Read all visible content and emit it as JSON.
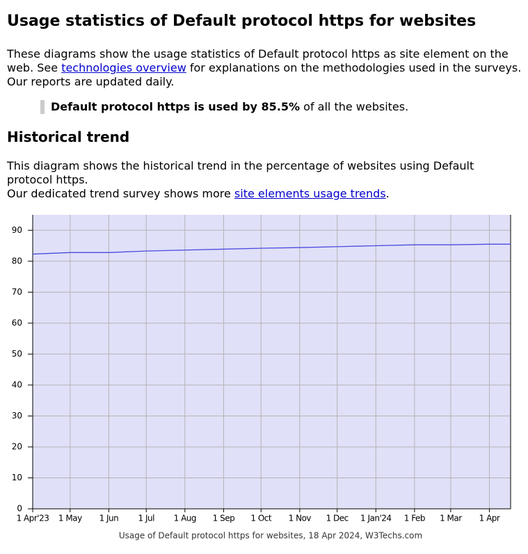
{
  "header": {
    "title": "Usage statistics of Default protocol https for websites"
  },
  "intro": {
    "before": "These diagrams show the usage statistics of Default protocol https as site element on the web. See ",
    "link": "technologies overview",
    "after": " for explanations on the methodologies used in the surveys. Our reports are updated daily."
  },
  "highlight": {
    "bold": "Default protocol https is used by 85.5%",
    "rest": " of all the websites."
  },
  "section": {
    "title": "Historical trend",
    "line1": "This diagram shows the historical trend in the percentage of websites using Default protocol https.",
    "line2_before": "Our dedicated trend survey shows more ",
    "line2_link": "site elements usage trends",
    "line2_after": "."
  },
  "chart_data": {
    "type": "line",
    "caption": "Usage of Default protocol https for websites, 18 Apr 2024, W3Techs.com",
    "x": [
      "2023-04-01",
      "2023-05-01",
      "2023-06-01",
      "2023-07-01",
      "2023-08-01",
      "2023-09-01",
      "2023-10-01",
      "2023-11-01",
      "2023-12-01",
      "2024-01-01",
      "2024-02-01",
      "2024-03-01",
      "2024-04-01",
      "2024-04-18"
    ],
    "values": [
      82.3,
      82.8,
      82.8,
      83.3,
      83.6,
      83.9,
      84.2,
      84.4,
      84.7,
      85.0,
      85.3,
      85.3,
      85.5,
      85.5
    ],
    "color": "#4a4ae0",
    "xlim": [
      "2023-04-01",
      "2024-04-18"
    ],
    "xticks": [
      {
        "value": "2023-04-01",
        "label": "1 Apr'23"
      },
      {
        "value": "2023-05-01",
        "label": "1 May"
      },
      {
        "value": "2023-06-01",
        "label": "1 Jun"
      },
      {
        "value": "2023-07-01",
        "label": "1 Jul"
      },
      {
        "value": "2023-08-01",
        "label": "1 Aug"
      },
      {
        "value": "2023-09-01",
        "label": "1 Sep"
      },
      {
        "value": "2023-10-01",
        "label": "1 Oct"
      },
      {
        "value": "2023-11-01",
        "label": "1 Nov"
      },
      {
        "value": "2023-12-01",
        "label": "1 Dec"
      },
      {
        "value": "2024-01-01",
        "label": "1 Jan'24"
      },
      {
        "value": "2024-02-01",
        "label": "1 Feb"
      },
      {
        "value": "2024-03-01",
        "label": "1 Mar"
      },
      {
        "value": "2024-04-01",
        "label": "1 Apr"
      }
    ],
    "ylim": [
      0,
      95
    ],
    "yticks": [
      0,
      10,
      20,
      30,
      40,
      50,
      60,
      70,
      80,
      90
    ],
    "grid": true
  }
}
